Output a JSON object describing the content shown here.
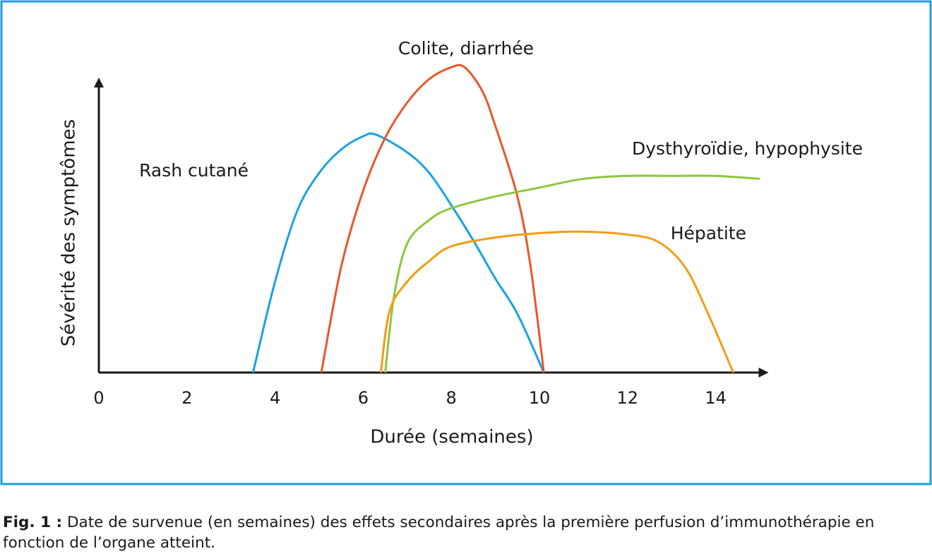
{
  "chart_data": {
    "type": "line",
    "xlabel": "Durée (semaines)",
    "ylabel": "Sévérité des symptômes",
    "xlim": [
      0,
      15.2
    ],
    "ylim": [
      0,
      11
    ],
    "xticks": [
      0,
      2,
      4,
      6,
      8,
      10,
      12,
      14
    ],
    "series": [
      {
        "name": "Rash cutané",
        "color": "#1ba1e2",
        "x": [
          3.5,
          4,
          4.5,
          5,
          5.5,
          6,
          6.3,
          7,
          7.5,
          8,
          8.5,
          9,
          9.5,
          10.1
        ],
        "values": [
          0,
          3.1,
          5.5,
          6.8,
          7.6,
          8.05,
          8.1,
          7.5,
          6.8,
          5.7,
          4.5,
          3.2,
          2.0,
          0
        ]
      },
      {
        "name": "Colite, diarrhée",
        "color": "#e8562a",
        "x": [
          5.05,
          5.5,
          6,
          6.5,
          7,
          7.5,
          8,
          8.3,
          8.7,
          9,
          9.5,
          9.8,
          10.1
        ],
        "values": [
          0,
          3.6,
          6.2,
          8.0,
          9.2,
          10.0,
          10.4,
          10.4,
          9.6,
          8.4,
          6.0,
          3.6,
          0
        ]
      },
      {
        "name": "Dysthyroïdie, hypophysite",
        "color": "#8dc63f",
        "x": [
          6.5,
          6.7,
          7,
          7.5,
          8,
          9,
          10,
          11,
          12,
          13,
          14,
          15
        ],
        "values": [
          0,
          2.6,
          4.4,
          5.2,
          5.6,
          6.0,
          6.3,
          6.6,
          6.7,
          6.7,
          6.7,
          6.6
        ]
      },
      {
        "name": "Hépatite",
        "color": "#f39c12",
        "x": [
          6.4,
          6.6,
          7,
          7.5,
          8,
          9,
          10,
          11,
          12,
          12.7,
          13.3,
          13.8,
          14.4
        ],
        "values": [
          0,
          2.1,
          3.1,
          3.8,
          4.3,
          4.6,
          4.75,
          4.8,
          4.7,
          4.45,
          3.6,
          2.1,
          0
        ]
      }
    ],
    "caption": {
      "label": "Fig. 1 :",
      "text": "Date de survenue (en semaines) des effets secondaires après la première perfusion d’immunothérapie en fonction de l’organe atteint."
    }
  }
}
